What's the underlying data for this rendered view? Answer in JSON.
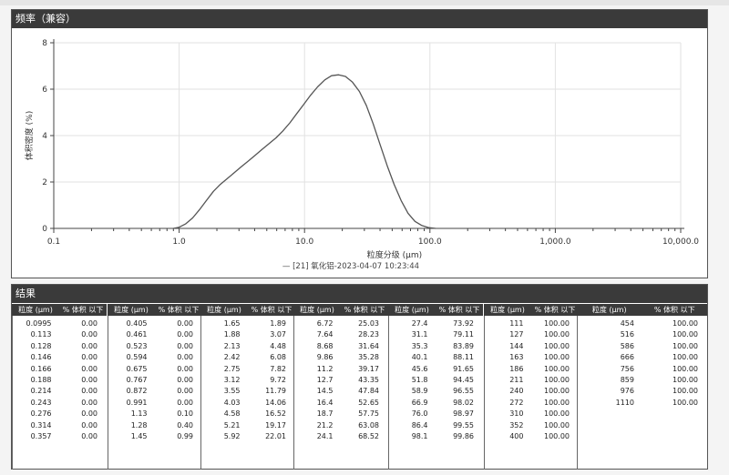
{
  "chart_panel": {
    "title": "频率（兼容）"
  },
  "results_panel": {
    "title": "结果"
  },
  "chart_data": {
    "type": "area",
    "x_scale": "log",
    "xlim": [
      0.1,
      10000
    ],
    "ylim": [
      0,
      8
    ],
    "ylabel": "体积密度 (%)",
    "xlabel": "粒度分级 (μm)",
    "x_ticks": [
      "0.1",
      "1.0",
      "10.0",
      "100.0",
      "1,000.0",
      "10,000.0"
    ],
    "y_ticks": [
      "0",
      "2",
      "4",
      "6",
      "8"
    ],
    "grid": true,
    "legend": "— [21] 氧化铝-2023-04-07 10:23:44",
    "legend_position": "bottom-center",
    "series_color": "#555555",
    "series": [
      {
        "x": [
          0.9,
          1.0,
          1.13,
          1.28,
          1.45,
          1.65,
          1.88,
          2.13,
          2.42,
          2.75,
          3.12,
          3.55,
          4.03,
          4.58,
          5.21,
          5.92,
          6.72,
          7.64,
          8.68,
          9.86,
          11.2,
          12.7,
          14.5,
          16.4,
          18.7,
          21.2,
          24.1,
          27.4,
          31.1,
          35.3,
          40.1,
          45.6,
          51.8,
          58.9,
          66.9,
          76.0,
          86.4,
          98.1,
          111
        ],
        "y": [
          0.0,
          0.05,
          0.2,
          0.45,
          0.8,
          1.2,
          1.6,
          1.9,
          2.15,
          2.4,
          2.65,
          2.9,
          3.15,
          3.4,
          3.65,
          3.9,
          4.2,
          4.55,
          4.95,
          5.35,
          5.75,
          6.1,
          6.4,
          6.58,
          6.62,
          6.55,
          6.3,
          5.9,
          5.3,
          4.5,
          3.6,
          2.7,
          1.9,
          1.2,
          0.65,
          0.3,
          0.12,
          0.03,
          0.0
        ]
      }
    ]
  },
  "results": {
    "header_size": "粒度 (μm)",
    "header_pct": "% 体积 以下",
    "columns": [
      [
        [
          "0.0995",
          "0.00"
        ],
        [
          "0.113",
          "0.00"
        ],
        [
          "0.128",
          "0.00"
        ],
        [
          "0.146",
          "0.00"
        ],
        [
          "0.166",
          "0.00"
        ],
        [
          "0.188",
          "0.00"
        ],
        [
          "0.214",
          "0.00"
        ],
        [
          "0.243",
          "0.00"
        ],
        [
          "0.276",
          "0.00"
        ],
        [
          "0.314",
          "0.00"
        ],
        [
          "0.357",
          "0.00"
        ]
      ],
      [
        [
          "0.405",
          "0.00"
        ],
        [
          "0.461",
          "0.00"
        ],
        [
          "0.523",
          "0.00"
        ],
        [
          "0.594",
          "0.00"
        ],
        [
          "0.675",
          "0.00"
        ],
        [
          "0.767",
          "0.00"
        ],
        [
          "0.872",
          "0.00"
        ],
        [
          "0.991",
          "0.00"
        ],
        [
          "1.13",
          "0.10"
        ],
        [
          "1.28",
          "0.40"
        ],
        [
          "1.45",
          "0.99"
        ]
      ],
      [
        [
          "1.65",
          "1.89"
        ],
        [
          "1.88",
          "3.07"
        ],
        [
          "2.13",
          "4.48"
        ],
        [
          "2.42",
          "6.08"
        ],
        [
          "2.75",
          "7.82"
        ],
        [
          "3.12",
          "9.72"
        ],
        [
          "3.55",
          "11.79"
        ],
        [
          "4.03",
          "14.06"
        ],
        [
          "4.58",
          "16.52"
        ],
        [
          "5.21",
          "19.17"
        ],
        [
          "5.92",
          "22.01"
        ]
      ],
      [
        [
          "6.72",
          "25.03"
        ],
        [
          "7.64",
          "28.23"
        ],
        [
          "8.68",
          "31.64"
        ],
        [
          "9.86",
          "35.28"
        ],
        [
          "11.2",
          "39.17"
        ],
        [
          "12.7",
          "43.35"
        ],
        [
          "14.5",
          "47.84"
        ],
        [
          "16.4",
          "52.65"
        ],
        [
          "18.7",
          "57.75"
        ],
        [
          "21.2",
          "63.08"
        ],
        [
          "24.1",
          "68.52"
        ]
      ],
      [
        [
          "27.4",
          "73.92"
        ],
        [
          "31.1",
          "79.11"
        ],
        [
          "35.3",
          "83.89"
        ],
        [
          "40.1",
          "88.11"
        ],
        [
          "45.6",
          "91.65"
        ],
        [
          "51.8",
          "94.45"
        ],
        [
          "58.9",
          "96.55"
        ],
        [
          "66.9",
          "98.02"
        ],
        [
          "76.0",
          "98.97"
        ],
        [
          "86.4",
          "99.55"
        ],
        [
          "98.1",
          "99.86"
        ]
      ],
      [
        [
          "111",
          "100.00"
        ],
        [
          "127",
          "100.00"
        ],
        [
          "144",
          "100.00"
        ],
        [
          "163",
          "100.00"
        ],
        [
          "186",
          "100.00"
        ],
        [
          "211",
          "100.00"
        ],
        [
          "240",
          "100.00"
        ],
        [
          "272",
          "100.00"
        ],
        [
          "310",
          "100.00"
        ],
        [
          "352",
          "100.00"
        ],
        [
          "400",
          "100.00"
        ]
      ],
      [
        [
          "454",
          "100.00"
        ],
        [
          "516",
          "100.00"
        ],
        [
          "586",
          "100.00"
        ],
        [
          "666",
          "100.00"
        ],
        [
          "756",
          "100.00"
        ],
        [
          "859",
          "100.00"
        ],
        [
          "976",
          "100.00"
        ],
        [
          "1110",
          "100.00"
        ]
      ]
    ]
  }
}
